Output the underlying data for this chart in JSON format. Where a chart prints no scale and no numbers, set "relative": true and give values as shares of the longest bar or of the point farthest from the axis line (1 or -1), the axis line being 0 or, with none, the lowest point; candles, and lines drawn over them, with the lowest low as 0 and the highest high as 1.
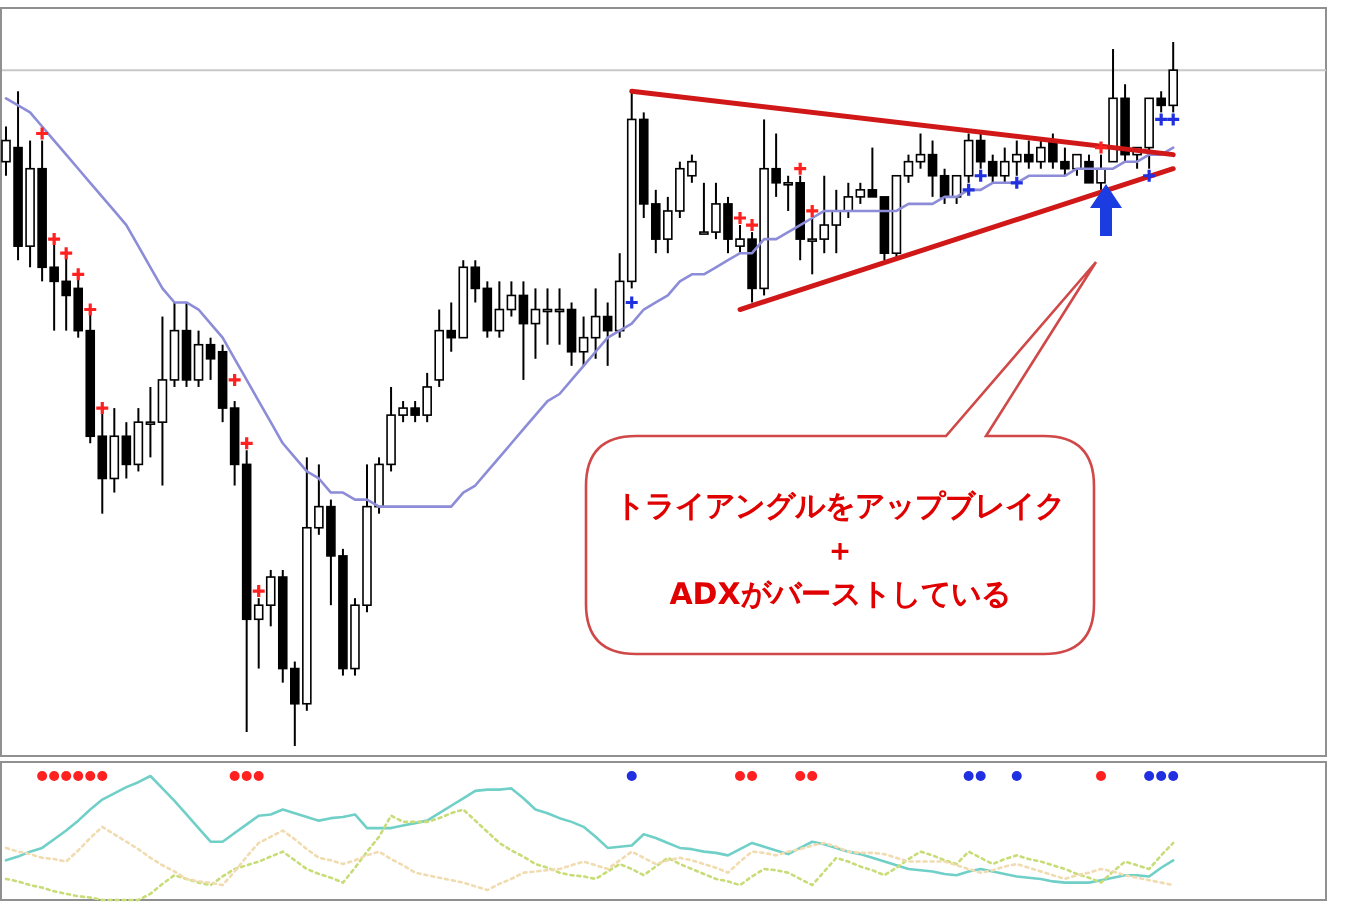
{
  "chart_data": [
    {
      "type": "candlestick",
      "relative": true,
      "categories": [
        null,
        null,
        null,
        null,
        null,
        null,
        null,
        null,
        null,
        null,
        null,
        null,
        null,
        null,
        null,
        null,
        null,
        null,
        null,
        null,
        null,
        null,
        null,
        null,
        null,
        null,
        null,
        null,
        null,
        null,
        null,
        null,
        null,
        null,
        null,
        null,
        null,
        null,
        null,
        null,
        null,
        null,
        null,
        null,
        null,
        null,
        null,
        null,
        null,
        null,
        null,
        null,
        null,
        null,
        null,
        null,
        null,
        null,
        null,
        null,
        null,
        null,
        null,
        null,
        null,
        null,
        null,
        null,
        null,
        null,
        null,
        null,
        null,
        null,
        null,
        null,
        null,
        null,
        null,
        null,
        null,
        null,
        null,
        null,
        null,
        null,
        null,
        null,
        null,
        null,
        null,
        null,
        null,
        null,
        null,
        null,
        null,
        null
      ],
      "ohlc": [
        [
          0.83,
          0.88,
          0.81,
          0.86
        ],
        [
          0.85,
          0.93,
          0.69,
          0.71
        ],
        [
          0.71,
          0.86,
          0.68,
          0.82
        ],
        [
          0.82,
          0.86,
          0.66,
          0.68
        ],
        [
          0.68,
          0.72,
          0.59,
          0.66
        ],
        [
          0.66,
          0.7,
          0.59,
          0.64
        ],
        [
          0.65,
          0.67,
          0.58,
          0.59
        ],
        [
          0.59,
          0.62,
          0.43,
          0.44
        ],
        [
          0.44,
          0.48,
          0.33,
          0.38
        ],
        [
          0.38,
          0.48,
          0.36,
          0.44
        ],
        [
          0.44,
          0.46,
          0.38,
          0.4
        ],
        [
          0.4,
          0.48,
          0.39,
          0.46
        ],
        [
          0.46,
          0.51,
          0.41,
          0.46
        ],
        [
          0.46,
          0.61,
          0.37,
          0.52
        ],
        [
          0.52,
          0.63,
          0.51,
          0.59
        ],
        [
          0.59,
          0.63,
          0.51,
          0.52
        ],
        [
          0.52,
          0.59,
          0.51,
          0.57
        ],
        [
          0.57,
          0.58,
          0.52,
          0.55
        ],
        [
          0.56,
          0.57,
          0.46,
          0.48
        ],
        [
          0.48,
          0.49,
          0.37,
          0.4
        ],
        [
          0.4,
          0.42,
          0.02,
          0.18
        ],
        [
          0.18,
          0.21,
          0.11,
          0.2
        ],
        [
          0.2,
          0.25,
          0.17,
          0.24
        ],
        [
          0.24,
          0.25,
          0.09,
          0.11
        ],
        [
          0.11,
          0.12,
          0,
          0.06
        ],
        [
          0.06,
          0.41,
          0.05,
          0.31
        ],
        [
          0.31,
          0.4,
          0.3,
          0.34
        ],
        [
          0.34,
          0.35,
          0.2,
          0.27
        ],
        [
          0.27,
          0.28,
          0.1,
          0.11
        ],
        [
          0.11,
          0.21,
          0.1,
          0.2
        ],
        [
          0.2,
          0.4,
          0.19,
          0.34
        ],
        [
          0.34,
          0.41,
          0.33,
          0.4
        ],
        [
          0.4,
          0.51,
          0.39,
          0.47
        ],
        [
          0.47,
          0.49,
          0.46,
          0.48
        ],
        [
          0.48,
          0.49,
          0.46,
          0.47
        ],
        [
          0.47,
          0.53,
          0.46,
          0.51
        ],
        [
          0.52,
          0.62,
          0.51,
          0.59
        ],
        [
          0.59,
          0.63,
          0.56,
          0.58
        ],
        [
          0.58,
          0.69,
          0.58,
          0.68
        ],
        [
          0.68,
          0.69,
          0.63,
          0.65
        ],
        [
          0.65,
          0.66,
          0.58,
          0.59
        ],
        [
          0.59,
          0.66,
          0.58,
          0.62
        ],
        [
          0.62,
          0.66,
          0.61,
          0.64
        ],
        [
          0.64,
          0.66,
          0.52,
          0.6
        ],
        [
          0.6,
          0.65,
          0.55,
          0.62
        ],
        [
          0.62,
          0.65,
          0.57,
          0.62
        ],
        [
          0.62,
          0.65,
          0.57,
          0.62
        ],
        [
          0.62,
          0.63,
          0.54,
          0.56
        ],
        [
          0.56,
          0.61,
          0.54,
          0.58
        ],
        [
          0.58,
          0.65,
          0.55,
          0.61
        ],
        [
          0.61,
          0.63,
          0.54,
          0.59
        ],
        [
          0.59,
          0.7,
          0.58,
          0.66
        ],
        [
          0.66,
          0.93,
          0.65,
          0.89
        ],
        [
          0.89,
          0.9,
          0.75,
          0.77
        ],
        [
          0.77,
          0.79,
          0.7,
          0.72
        ],
        [
          0.72,
          0.78,
          0.7,
          0.76
        ],
        [
          0.76,
          0.83,
          0.75,
          0.82
        ],
        [
          0.81,
          0.84,
          0.8,
          0.83
        ],
        [
          0.73,
          0.8,
          0.73,
          0.73
        ],
        [
          0.73,
          0.8,
          0.72,
          0.77
        ],
        [
          0.77,
          0.78,
          0.7,
          0.72
        ],
        [
          0.71,
          0.74,
          0.7,
          0.72
        ],
        [
          0.72,
          0.73,
          0.63,
          0.65
        ],
        [
          0.65,
          0.89,
          0.64,
          0.82
        ],
        [
          0.82,
          0.87,
          0.78,
          0.8
        ],
        [
          0.8,
          0.81,
          0.76,
          0.8
        ],
        [
          0.8,
          0.81,
          0.69,
          0.72
        ],
        [
          0.72,
          0.75,
          0.67,
          0.72
        ],
        [
          0.72,
          0.81,
          0.7,
          0.74
        ],
        [
          0.74,
          0.79,
          0.7,
          0.76
        ],
        [
          0.76,
          0.8,
          0.75,
          0.78
        ],
        [
          0.78,
          0.8,
          0.77,
          0.79
        ],
        [
          0.79,
          0.85,
          0.78,
          0.78
        ],
        [
          0.78,
          0.78,
          0.69,
          0.7
        ],
        [
          0.7,
          0.81,
          0.69,
          0.81
        ],
        [
          0.81,
          0.84,
          0.8,
          0.83
        ],
        [
          0.83,
          0.87,
          0.82,
          0.84
        ],
        [
          0.84,
          0.86,
          0.78,
          0.81
        ],
        [
          0.81,
          0.82,
          0.77,
          0.78
        ],
        [
          0.78,
          0.81,
          0.77,
          0.81
        ],
        [
          0.81,
          0.87,
          0.8,
          0.86
        ],
        [
          0.86,
          0.87,
          0.82,
          0.83
        ],
        [
          0.83,
          0.84,
          0.8,
          0.81
        ],
        [
          0.81,
          0.85,
          0.8,
          0.83
        ],
        [
          0.83,
          0.86,
          0.81,
          0.84
        ],
        [
          0.84,
          0.86,
          0.82,
          0.83
        ],
        [
          0.83,
          0.86,
          0.82,
          0.85
        ],
        [
          0.86,
          0.87,
          0.82,
          0.83
        ],
        [
          0.83,
          0.85,
          0.81,
          0.82
        ],
        [
          0.82,
          0.84,
          0.81,
          0.84
        ],
        [
          0.83,
          0.84,
          0.8,
          0.8
        ],
        [
          0.8,
          0.84,
          0.79,
          0.82
        ],
        [
          0.83,
          0.99,
          0.83,
          0.92
        ],
        [
          0.92,
          0.94,
          0.83,
          0.84
        ],
        [
          0.84,
          0.85,
          0.82,
          0.85
        ],
        [
          0.85,
          0.92,
          0.82,
          0.92
        ],
        [
          0.92,
          0.93,
          0.9,
          0.91
        ],
        [
          0.91,
          1,
          0.9,
          0.96
        ]
      ],
      "series": [
        {
          "type": "line",
          "color": "#8c8cd8",
          "values": [
            0.92,
            0.91,
            0.9,
            0.88,
            0.86,
            0.84,
            0.82,
            0.8,
            0.78,
            0.76,
            0.74,
            0.71,
            0.68,
            0.65,
            0.63,
            0.63,
            0.62,
            0.6,
            0.58,
            0.55,
            0.52,
            0.49,
            0.46,
            0.43,
            0.41,
            0.39,
            0.38,
            0.36,
            0.36,
            0.35,
            0.35,
            0.34,
            0.34,
            0.34,
            0.34,
            0.34,
            0.34,
            0.34,
            0.36,
            0.37,
            0.39,
            0.41,
            0.43,
            0.45,
            0.47,
            0.49,
            0.5,
            0.52,
            0.54,
            0.56,
            0.58,
            0.59,
            0.6,
            0.62,
            0.63,
            0.64,
            0.66,
            0.67,
            0.67,
            0.68,
            0.69,
            0.7,
            0.7,
            0.72,
            0.72,
            0.73,
            0.74,
            0.75,
            0.76,
            0.76,
            0.76,
            0.76,
            0.76,
            0.76,
            0.76,
            0.77,
            0.77,
            0.77,
            0.78,
            0.78,
            0.79,
            0.79,
            0.8,
            0.8,
            0.8,
            0.81,
            0.81,
            0.81,
            0.81,
            0.82,
            0.82,
            0.82,
            0.82,
            0.83,
            0.83,
            0.84,
            0.84,
            0.85
          ]
        },
        {
          "type": "line",
          "color": "#d01818",
          "values": [
            null,
            null,
            null,
            null,
            null,
            null,
            null,
            null,
            null,
            null,
            null,
            null,
            null,
            null,
            null,
            null,
            null,
            null,
            null,
            null,
            null,
            null,
            null,
            null,
            null,
            null,
            null,
            null,
            null,
            null,
            null,
            null,
            null,
            null,
            null,
            null,
            null,
            null,
            null,
            null,
            null,
            null,
            null,
            null,
            null,
            null,
            null,
            null,
            null,
            null,
            null,
            null,
            0.93,
            null,
            null,
            null,
            null,
            null,
            null,
            null,
            null,
            null,
            null,
            null,
            null,
            null,
            null,
            null,
            null,
            null,
            null,
            null,
            null,
            null,
            null,
            null,
            null,
            null,
            null,
            null,
            null,
            null,
            null,
            null,
            null,
            null,
            null,
            null,
            null,
            null,
            null,
            null,
            null,
            null,
            null,
            null,
            null,
            0.84
          ]
        },
        {
          "type": "line",
          "color": "#d01818",
          "values": [
            null,
            null,
            null,
            null,
            null,
            null,
            null,
            null,
            null,
            null,
            null,
            null,
            null,
            null,
            null,
            null,
            null,
            null,
            null,
            null,
            null,
            null,
            null,
            null,
            null,
            null,
            null,
            null,
            null,
            null,
            null,
            null,
            null,
            null,
            null,
            null,
            null,
            null,
            null,
            null,
            null,
            null,
            null,
            null,
            null,
            null,
            null,
            null,
            null,
            null,
            null,
            null,
            null,
            null,
            null,
            null,
            null,
            null,
            null,
            null,
            null,
            0.62,
            null,
            null,
            null,
            null,
            null,
            null,
            null,
            null,
            null,
            null,
            null,
            null,
            null,
            null,
            null,
            null,
            null,
            null,
            null,
            null,
            null,
            null,
            null,
            null,
            null,
            null,
            null,
            null,
            null,
            null,
            null,
            null,
            null,
            null,
            null,
            0.82
          ]
        },
        {
          "type": "scatter",
          "marker": "cross",
          "color": "#ff2020",
          "values": [
            null,
            null,
            null,
            0.87,
            0.72,
            0.7,
            0.67,
            0.62,
            0.48,
            null,
            null,
            null,
            null,
            null,
            null,
            null,
            null,
            null,
            null,
            0.52,
            0.43,
            0.22,
            null,
            null,
            null,
            null,
            null,
            null,
            null,
            null,
            null,
            null,
            null,
            null,
            null,
            null,
            null,
            null,
            null,
            null,
            null,
            null,
            null,
            null,
            null,
            null,
            null,
            null,
            null,
            null,
            null,
            null,
            null,
            null,
            null,
            null,
            null,
            null,
            null,
            null,
            null,
            0.75,
            0.74,
            null,
            null,
            null,
            0.82,
            0.76,
            null,
            null,
            null,
            null,
            null,
            null,
            null,
            null,
            null,
            null,
            null,
            null,
            null,
            null,
            null,
            null,
            null,
            null,
            null,
            null,
            null,
            null,
            null,
            0.85,
            null,
            null,
            null,
            null,
            null,
            null
          ]
        },
        {
          "type": "scatter",
          "marker": "cross",
          "color": "#2030e0",
          "values": [
            null,
            null,
            null,
            null,
            null,
            null,
            null,
            null,
            null,
            null,
            null,
            null,
            null,
            null,
            null,
            null,
            null,
            null,
            null,
            null,
            null,
            null,
            null,
            null,
            null,
            null,
            null,
            null,
            null,
            null,
            null,
            null,
            null,
            null,
            null,
            null,
            null,
            null,
            null,
            null,
            null,
            null,
            null,
            null,
            null,
            null,
            null,
            null,
            null,
            null,
            null,
            null,
            0.63,
            null,
            null,
            null,
            null,
            null,
            null,
            null,
            null,
            null,
            null,
            null,
            null,
            null,
            null,
            null,
            null,
            null,
            null,
            null,
            null,
            null,
            null,
            null,
            null,
            null,
            null,
            null,
            0.79,
            0.81,
            null,
            null,
            0.8,
            null,
            null,
            null,
            null,
            null,
            null,
            null,
            null,
            null,
            null,
            0.81,
            0.89,
            0.89
          ]
        }
      ],
      "ref_lines": [
        {
          "axis": "y",
          "value": 0.96,
          "color": "#c8c8c8"
        }
      ],
      "annotations": [
        "トライアングルをアップブレイク",
        "＋",
        "ADXがバーストしている"
      ]
    },
    {
      "type": "line",
      "relative": true,
      "categories": [
        null,
        null,
        null,
        null,
        null,
        null,
        null,
        null,
        null,
        null,
        null,
        null,
        null,
        null,
        null,
        null,
        null,
        null,
        null,
        null,
        null,
        null,
        null,
        null,
        null,
        null,
        null,
        null,
        null,
        null,
        null,
        null,
        null,
        null,
        null,
        null,
        null,
        null,
        null,
        null,
        null,
        null,
        null,
        null,
        null,
        null,
        null,
        null,
        null,
        null,
        null,
        null,
        null,
        null,
        null,
        null,
        null,
        null,
        null,
        null,
        null,
        null,
        null,
        null,
        null,
        null,
        null,
        null,
        null,
        null,
        null,
        null,
        null,
        null,
        null,
        null,
        null,
        null,
        null,
        null,
        null,
        null,
        null,
        null,
        null,
        null,
        null,
        null,
        null,
        null,
        null,
        null,
        null,
        null,
        null,
        null,
        null,
        null
      ],
      "series": [
        {
          "color": "#70d0c8",
          "line_style": "solid",
          "values": [
            0.32,
            0.35,
            0.39,
            0.42,
            0.49,
            0.56,
            0.64,
            0.73,
            0.81,
            0.86,
            0.91,
            0.95,
            1,
            0.9,
            0.8,
            0.69,
            0.58,
            0.47,
            0.47,
            0.54,
            0.61,
            0.68,
            0.69,
            0.73,
            0.7,
            0.67,
            0.64,
            0.66,
            0.67,
            0.69,
            0.58,
            0.58,
            0.58,
            0.6,
            0.62,
            0.64,
            0.7,
            0.76,
            0.82,
            0.88,
            0.89,
            0.89,
            0.9,
            0.82,
            0.73,
            0.7,
            0.66,
            0.63,
            0.59,
            0.51,
            0.42,
            0.43,
            0.44,
            0.53,
            0.5,
            0.46,
            0.42,
            0.41,
            0.39,
            0.38,
            0.36,
            0.41,
            0.46,
            0.43,
            0.4,
            0.37,
            0.42,
            0.47,
            0.45,
            0.42,
            0.39,
            0.37,
            0.34,
            0.31,
            0.28,
            0.25,
            0.24,
            0.23,
            0.21,
            0.2,
            0.23,
            0.25,
            0.23,
            0.21,
            0.19,
            0.18,
            0.17,
            0.15,
            0.14,
            0.14,
            0.14,
            0.16,
            0.18,
            0.2,
            0.2,
            0.19,
            0.26,
            0.32
          ]
        },
        {
          "color": "#c8dc78",
          "line_style": "dotted",
          "values": [
            0.17,
            0.15,
            0.12,
            0.1,
            0.07,
            0.05,
            0.03,
            0.02,
            0,
            0,
            0,
            0,
            0.05,
            0.13,
            0.2,
            0.17,
            0.14,
            0.12,
            0.19,
            0.25,
            0.28,
            0.31,
            0.35,
            0.39,
            0.32,
            0.25,
            0.21,
            0.18,
            0.14,
            0.26,
            0.39,
            0.51,
            0.68,
            0.63,
            0.63,
            0.63,
            0.66,
            0.7,
            0.73,
            0.64,
            0.55,
            0.46,
            0.4,
            0.35,
            0.29,
            0.26,
            0.22,
            0.2,
            0.19,
            0.17,
            0.23,
            0.29,
            0.25,
            0.2,
            0.27,
            0.34,
            0.29,
            0.25,
            0.21,
            0.17,
            0.15,
            0.12,
            0.19,
            0.25,
            0.24,
            0.22,
            0.17,
            0.12,
            0.23,
            0.34,
            0.31,
            0.27,
            0.24,
            0.2,
            0.26,
            0.33,
            0.39,
            0.36,
            0.32,
            0.29,
            0.39,
            0.34,
            0.29,
            0.33,
            0.36,
            0.33,
            0.31,
            0.28,
            0.25,
            0.21,
            0.18,
            0.14,
            0.23,
            0.31,
            0.28,
            0.25,
            0.36,
            0.46
          ]
        },
        {
          "color": "#f0dcb0",
          "line_style": "dotted",
          "values": [
            0.42,
            0.39,
            0.37,
            0.34,
            0.33,
            0.31,
            0.4,
            0.5,
            0.59,
            0.53,
            0.47,
            0.41,
            0.34,
            0.28,
            0.23,
            0.17,
            0.15,
            0.14,
            0.12,
            0.23,
            0.35,
            0.46,
            0.51,
            0.56,
            0.49,
            0.41,
            0.34,
            0.32,
            0.29,
            0.32,
            0.36,
            0.39,
            0.33,
            0.28,
            0.22,
            0.2,
            0.18,
            0.16,
            0.14,
            0.11,
            0.08,
            0.13,
            0.17,
            0.22,
            0.23,
            0.24,
            0.25,
            0.28,
            0.31,
            0.28,
            0.25,
            0.32,
            0.39,
            0.34,
            0.29,
            0.32,
            0.34,
            0.32,
            0.29,
            0.26,
            0.22,
            0.31,
            0.39,
            0.38,
            0.36,
            0.39,
            0.41,
            0.44,
            0.46,
            0.43,
            0.39,
            0.38,
            0.38,
            0.37,
            0.34,
            0.31,
            0.31,
            0.31,
            0.31,
            0.28,
            0.25,
            0.22,
            0.24,
            0.27,
            0.29,
            0.26,
            0.23,
            0.2,
            0.17,
            0.2,
            0.22,
            0.25,
            0.23,
            0.2,
            0.18,
            0.16,
            0.14,
            0.12
          ]
        }
      ]
    }
  ]
}
